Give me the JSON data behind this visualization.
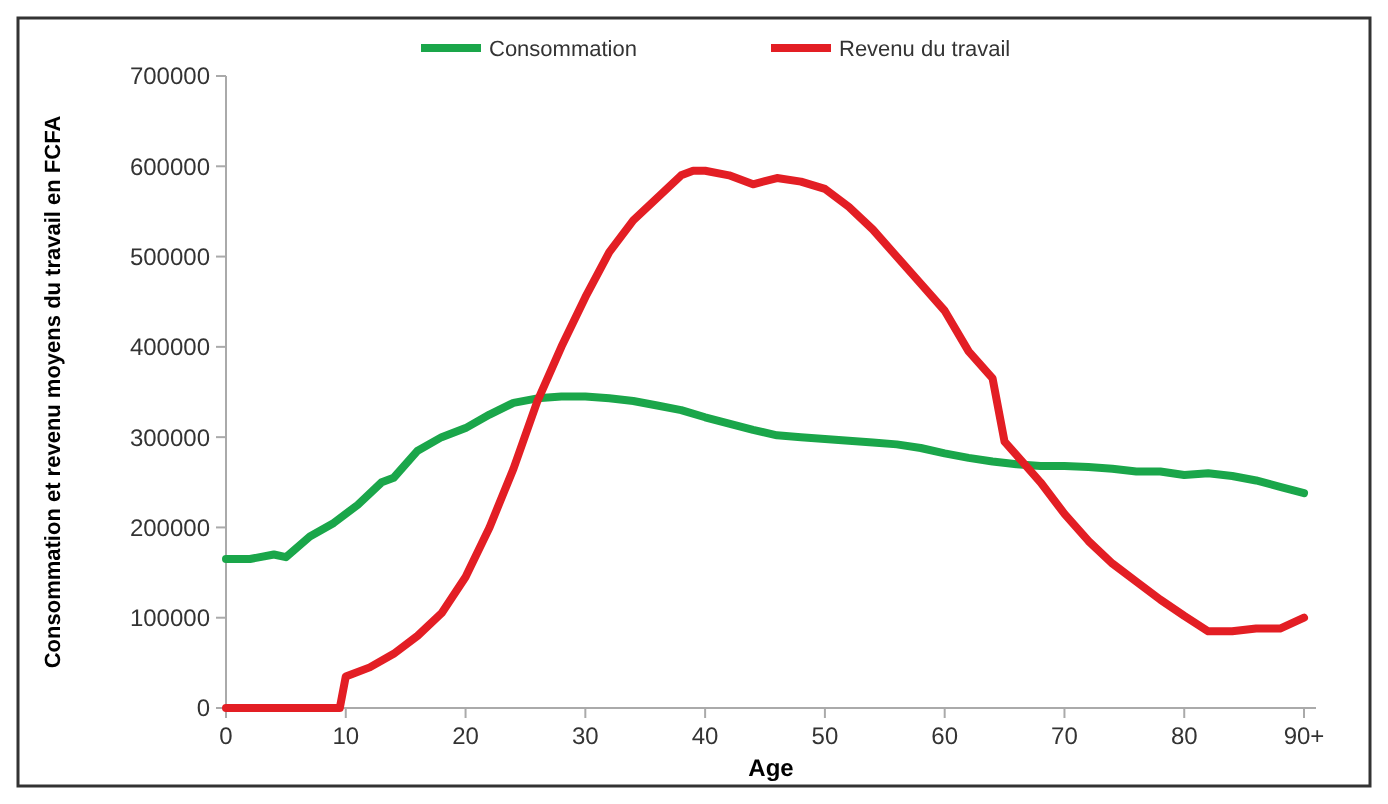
{
  "chart_data": {
    "type": "line",
    "xlabel": "Age",
    "ylabel": "Consommation et revenu moyens du travail en FCFA",
    "xlim": [
      0,
      91
    ],
    "xticks": [
      0,
      10,
      20,
      30,
      40,
      50,
      60,
      70,
      80,
      {
        "value": 90,
        "label": "90+"
      }
    ],
    "ylim": [
      0,
      700000
    ],
    "yticks": [
      0,
      100000,
      200000,
      300000,
      400000,
      500000,
      600000,
      700000
    ],
    "legend": "top",
    "grid": false,
    "marker": "none",
    "line_style": "solid",
    "series": [
      {
        "name": "Consommation",
        "color": "#1aa64a",
        "x": [
          0,
          2,
          4,
          5,
          7,
          9,
          11,
          13,
          14,
          16,
          18,
          20,
          22,
          24,
          26,
          28,
          30,
          32,
          34,
          36,
          38,
          40,
          42,
          44,
          46,
          48,
          50,
          52,
          54,
          56,
          58,
          60,
          62,
          64,
          66,
          68,
          70,
          72,
          74,
          76,
          78,
          80,
          82,
          84,
          86,
          88,
          90
        ],
        "values": [
          165000,
          165000,
          170000,
          167000,
          190000,
          205000,
          225000,
          250000,
          255000,
          285000,
          300000,
          310000,
          325000,
          338000,
          343000,
          345000,
          345000,
          343000,
          340000,
          335000,
          330000,
          322000,
          315000,
          308000,
          302000,
          300000,
          298000,
          296000,
          294000,
          292000,
          288000,
          282000,
          277000,
          273000,
          270000,
          268000,
          268000,
          267000,
          265000,
          262000,
          262000,
          258000,
          260000,
          257000,
          252000,
          245000,
          238000
        ]
      },
      {
        "name": "Revenu du travail",
        "color": "#e31e24",
        "x": [
          0,
          9.5,
          10,
          12,
          14,
          16,
          18,
          20,
          22,
          24,
          26,
          28,
          30,
          32,
          34,
          36,
          38,
          39,
          40,
          42,
          44,
          46,
          48,
          50,
          52,
          54,
          56,
          58,
          60,
          62,
          64,
          65,
          66,
          68,
          70,
          72,
          74,
          76,
          78,
          80,
          82,
          84,
          86,
          88,
          90
        ],
        "values": [
          0,
          0,
          35000,
          45000,
          60000,
          80000,
          105000,
          145000,
          200000,
          265000,
          340000,
          400000,
          455000,
          505000,
          540000,
          565000,
          590000,
          595000,
          595000,
          590000,
          580000,
          587000,
          583000,
          575000,
          555000,
          530000,
          500000,
          470000,
          440000,
          395000,
          365000,
          295000,
          280000,
          250000,
          215000,
          185000,
          160000,
          140000,
          120000,
          102000,
          85000,
          85000,
          88000,
          88000,
          100000
        ]
      }
    ]
  }
}
